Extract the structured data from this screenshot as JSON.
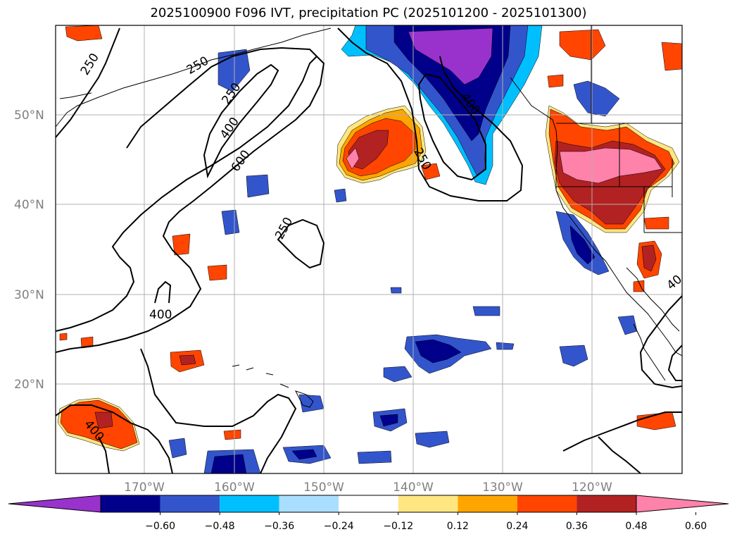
{
  "title": "2025100900 F096 IVT, precipitation PC (2025101200 - 2025101300)",
  "latitude_labels": [
    "50°N",
    "40°N",
    "30°N",
    "20°N"
  ],
  "longitude_labels": [
    "170°W",
    "160°W",
    "150°W",
    "140°W",
    "130°W",
    "120°W"
  ],
  "contour_labels": [
    "250",
    "250",
    "250",
    "400",
    "600",
    "250",
    "400",
    "250",
    "400",
    "400",
    "40"
  ],
  "colorbar": {
    "tick_labels": [
      "−0.60",
      "−0.48",
      "−0.36",
      "−0.24",
      "−0.12",
      "0.12",
      "0.24",
      "0.36",
      "0.48",
      "0.60"
    ],
    "colors": [
      "#9932cc",
      "#00008b",
      "#3355cc",
      "#00bfff",
      "#aadeff",
      "#ffffff",
      "#ffe680",
      "#ffa500",
      "#ff4500",
      "#b22222",
      "#ff82ab"
    ]
  },
  "palette": {
    "land_outline": "#000000",
    "grid": "#b0b0b0",
    "contour": "#000000"
  }
}
